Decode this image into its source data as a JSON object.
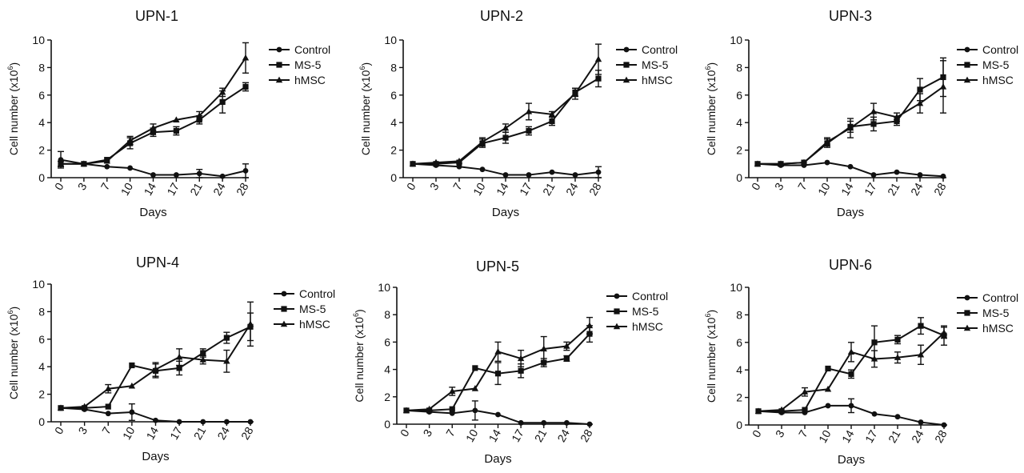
{
  "colors": {
    "ink": "#111111",
    "background": "#ffffff"
  },
  "shared": {
    "x": [
      0,
      3,
      7,
      10,
      14,
      17,
      21,
      24,
      28
    ],
    "xticks": [
      "0",
      "3",
      "7",
      "10",
      "14",
      "17",
      "21",
      "24",
      "28"
    ],
    "yticks": [
      "0",
      "2",
      "4",
      "6",
      "8",
      "10"
    ],
    "ylim": [
      0,
      10
    ],
    "xlabel": "Days",
    "ylabel_main": "Cell number (x10",
    "ylabel_exp": "6",
    "ylabel_close": ")",
    "legend": [
      {
        "name": "Control",
        "marker": "circle"
      },
      {
        "name": "MS-5",
        "marker": "square"
      },
      {
        "name": "hMSC",
        "marker": "triangle"
      }
    ]
  },
  "chart_data": [
    {
      "type": "line",
      "title": "UPN-1",
      "xlabel": "Days",
      "ylabel": "Cell number (x10⁶)",
      "ylim": [
        0,
        10
      ],
      "categories": [
        "0",
        "3",
        "7",
        "10",
        "14",
        "17",
        "21",
        "24",
        "28"
      ],
      "series": [
        {
          "name": "Control",
          "values": [
            1.3,
            1.0,
            0.8,
            0.7,
            0.2,
            0.2,
            0.3,
            0.1,
            0.5
          ],
          "errors": [
            0.6,
            0.1,
            0.1,
            0.1,
            0.1,
            0.1,
            0.3,
            0.1,
            0.5
          ]
        },
        {
          "name": "MS-5",
          "values": [
            1.0,
            1.0,
            1.3,
            2.5,
            3.3,
            3.4,
            4.2,
            5.5,
            6.6
          ],
          "errors": [
            0.2,
            0.1,
            0.1,
            0.4,
            0.3,
            0.3,
            0.3,
            0.8,
            0.3
          ]
        },
        {
          "name": "hMSC",
          "values": [
            1.0,
            1.0,
            1.2,
            2.7,
            3.6,
            4.2,
            4.5,
            6.2,
            8.7
          ],
          "errors": [
            0.1,
            0.1,
            0.1,
            0.3,
            0.3,
            0.1,
            0.3,
            0.3,
            1.1
          ]
        }
      ]
    },
    {
      "type": "line",
      "title": "UPN-2",
      "xlabel": "Days",
      "ylabel": "Cell number (x10⁶)",
      "ylim": [
        0,
        10
      ],
      "categories": [
        "0",
        "3",
        "7",
        "10",
        "14",
        "17",
        "21",
        "24",
        "28"
      ],
      "series": [
        {
          "name": "Control",
          "values": [
            1.0,
            0.9,
            0.8,
            0.6,
            0.2,
            0.2,
            0.4,
            0.2,
            0.4
          ],
          "errors": [
            0.1,
            0.1,
            0.1,
            0.1,
            0.1,
            0.1,
            0.1,
            0.1,
            0.4
          ]
        },
        {
          "name": "MS-5",
          "values": [
            1.0,
            1.0,
            1.1,
            2.5,
            2.9,
            3.4,
            4.1,
            6.2,
            7.2
          ],
          "errors": [
            0.1,
            0.1,
            0.1,
            0.3,
            0.4,
            0.3,
            0.3,
            0.3,
            0.6
          ]
        },
        {
          "name": "hMSC",
          "values": [
            1.0,
            1.1,
            1.2,
            2.6,
            3.6,
            4.8,
            4.6,
            6.1,
            8.6
          ],
          "errors": [
            0.1,
            0.1,
            0.1,
            0.3,
            0.3,
            0.6,
            0.2,
            0.4,
            1.1
          ]
        }
      ]
    },
    {
      "type": "line",
      "title": "UPN-3",
      "xlabel": "Days",
      "ylabel": "Cell number (x10⁶)",
      "ylim": [
        0,
        10
      ],
      "categories": [
        "0",
        "3",
        "7",
        "10",
        "14",
        "17",
        "21",
        "24",
        "28"
      ],
      "series": [
        {
          "name": "Control",
          "values": [
            1.0,
            0.9,
            0.9,
            1.1,
            0.8,
            0.2,
            0.4,
            0.2,
            0.1
          ],
          "errors": [
            0.1,
            0.1,
            0.1,
            0.1,
            0.1,
            0.1,
            0.1,
            0.1,
            0.1
          ]
        },
        {
          "name": "MS-5",
          "values": [
            1.0,
            1.0,
            1.1,
            2.5,
            3.7,
            3.9,
            4.1,
            6.4,
            7.3
          ],
          "errors": [
            0.1,
            0.1,
            0.1,
            0.3,
            0.4,
            0.5,
            0.3,
            0.8,
            1.4
          ]
        },
        {
          "name": "hMSC",
          "values": [
            1.0,
            1.0,
            1.1,
            2.6,
            3.6,
            4.8,
            4.4,
            5.4,
            6.6
          ],
          "errors": [
            0.1,
            0.1,
            0.1,
            0.3,
            0.7,
            0.6,
            0.3,
            0.7,
            1.9
          ]
        }
      ]
    },
    {
      "type": "line",
      "title": "UPN-4",
      "xlabel": "Days",
      "ylabel": "Cell number (x10⁶)",
      "ylim": [
        0,
        10
      ],
      "categories": [
        "0",
        "3",
        "7",
        "10",
        "14",
        "17",
        "21",
        "24",
        "28"
      ],
      "series": [
        {
          "name": "Control",
          "values": [
            1.0,
            0.9,
            0.6,
            0.7,
            0.1,
            0.0,
            0.0,
            0.0,
            0.0
          ],
          "errors": [
            0.1,
            0.1,
            0.1,
            0.6,
            0.1,
            0.05,
            0.05,
            0.05,
            0.05
          ]
        },
        {
          "name": "MS-5",
          "values": [
            1.0,
            1.0,
            1.1,
            4.1,
            3.7,
            3.9,
            5.0,
            6.1,
            6.9
          ],
          "errors": [
            0.1,
            0.1,
            0.1,
            0.1,
            0.5,
            0.5,
            0.3,
            0.4,
            1.0
          ]
        },
        {
          "name": "hMSC",
          "values": [
            1.0,
            1.1,
            2.4,
            2.6,
            3.8,
            4.7,
            4.5,
            4.4,
            7.1
          ],
          "errors": [
            0.1,
            0.1,
            0.3,
            0.1,
            0.5,
            0.6,
            0.3,
            0.8,
            1.6
          ]
        }
      ]
    },
    {
      "type": "line",
      "title": "UPN-5",
      "xlabel": "Days",
      "ylabel": "Cell number (x10⁶)",
      "ylim": [
        0,
        10
      ],
      "categories": [
        "0",
        "3",
        "7",
        "10",
        "14",
        "17",
        "21",
        "24",
        "28"
      ],
      "series": [
        {
          "name": "Control",
          "values": [
            1.0,
            0.9,
            0.8,
            1.0,
            0.7,
            0.1,
            0.1,
            0.1,
            0.0
          ],
          "errors": [
            0.1,
            0.1,
            0.1,
            0.7,
            0.1,
            0.1,
            0.1,
            0.1,
            0.05
          ]
        },
        {
          "name": "MS-5",
          "values": [
            1.0,
            1.0,
            1.1,
            4.1,
            3.7,
            3.9,
            4.5,
            4.8,
            6.6
          ],
          "errors": [
            0.1,
            0.1,
            0.1,
            0.1,
            0.8,
            0.5,
            0.3,
            0.2,
            0.6
          ]
        },
        {
          "name": "hMSC",
          "values": [
            1.0,
            1.1,
            2.4,
            2.6,
            5.3,
            4.8,
            5.5,
            5.7,
            7.2
          ],
          "errors": [
            0.1,
            0.1,
            0.3,
            0.1,
            0.7,
            0.6,
            0.9,
            0.3,
            0.6
          ]
        }
      ]
    },
    {
      "type": "line",
      "title": "UPN-6",
      "xlabel": "Days",
      "ylabel": "Cell number (x10⁶)",
      "ylim": [
        0,
        10
      ],
      "categories": [
        "0",
        "3",
        "7",
        "10",
        "14",
        "17",
        "21",
        "24",
        "28"
      ],
      "series": [
        {
          "name": "Control",
          "values": [
            1.0,
            0.9,
            0.9,
            1.4,
            1.4,
            0.8,
            0.6,
            0.2,
            0.0
          ],
          "errors": [
            0.1,
            0.1,
            0.1,
            0.1,
            0.5,
            0.1,
            0.1,
            0.1,
            0.05
          ]
        },
        {
          "name": "MS-5",
          "values": [
            1.0,
            1.0,
            1.1,
            4.1,
            3.7,
            6.0,
            6.2,
            7.2,
            6.5
          ],
          "errors": [
            0.1,
            0.1,
            0.1,
            0.1,
            0.3,
            1.2,
            0.3,
            0.6,
            0.7
          ]
        },
        {
          "name": "hMSC",
          "values": [
            1.0,
            1.1,
            2.4,
            2.6,
            5.3,
            4.8,
            4.9,
            5.1,
            6.7
          ],
          "errors": [
            0.1,
            0.1,
            0.3,
            0.1,
            0.7,
            0.6,
            0.4,
            0.7,
            0.4
          ]
        }
      ]
    }
  ]
}
